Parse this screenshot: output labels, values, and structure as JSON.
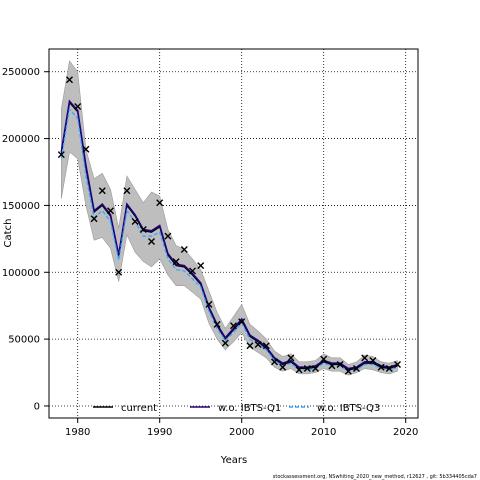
{
  "chart_data": {
    "type": "line",
    "xlabel": "Years",
    "ylabel": "Catch",
    "xlim": [
      1976.5,
      2021.5
    ],
    "ylim": [
      -9000,
      267000
    ],
    "xticks": [
      1980,
      1990,
      2000,
      2010,
      2020
    ],
    "xtick_labels": [
      "1980",
      "1990",
      "2000",
      "2010",
      "2020"
    ],
    "yticks": [
      0,
      50000,
      100000,
      150000,
      200000,
      250000
    ],
    "ytick_labels": [
      "0",
      "50000",
      "100000",
      "150000",
      "200000",
      "250000"
    ],
    "grid": true,
    "legend_position": "bottom",
    "footer": "stockassessment.org, NSwhiting_2020_new_method, r12627 , git: 5b334405cda7",
    "x": [
      1978,
      1979,
      1980,
      1981,
      1982,
      1983,
      1984,
      1985,
      1986,
      1987,
      1988,
      1989,
      1990,
      1991,
      1992,
      1993,
      1994,
      1995,
      1996,
      1997,
      1998,
      1999,
      2000,
      2001,
      2002,
      2003,
      2004,
      2005,
      2006,
      2007,
      2008,
      2009,
      2010,
      2011,
      2012,
      2013,
      2014,
      2015,
      2016,
      2017,
      2018,
      2019
    ],
    "observed": {
      "marker": "x",
      "values": [
        188000,
        244000,
        224000,
        192000,
        140000,
        161000,
        146000,
        100000,
        161000,
        138000,
        132000,
        123000,
        152000,
        127000,
        108000,
        117000,
        101000,
        105000,
        76000,
        61000,
        47000,
        60000,
        63000,
        45000,
        46000,
        45000,
        33000,
        29000,
        36000,
        27000,
        28000,
        28000,
        35000,
        30000,
        31000,
        26000,
        28000,
        36000,
        34000,
        29000,
        28000,
        31000
      ]
    },
    "band": {
      "color": "#bebebe",
      "lower": [
        155000,
        190000,
        185000,
        150000,
        124000,
        126000,
        118000,
        93000,
        128000,
        115000,
        108000,
        104000,
        110000,
        98000,
        90000,
        90000,
        85000,
        80000,
        62000,
        50000,
        42000,
        48000,
        55000,
        44000,
        40000,
        36000,
        29000,
        26000,
        28000,
        24000,
        24000,
        25000,
        28000,
        26000,
        26000,
        23000,
        25000,
        28000,
        27000,
        25000,
        24000,
        26000
      ],
      "upper": [
        222000,
        258000,
        250000,
        192000,
        170000,
        174000,
        162000,
        133000,
        172000,
        162000,
        152000,
        160000,
        157000,
        132000,
        120000,
        117000,
        110000,
        102000,
        86000,
        70000,
        58000,
        67000,
        76000,
        61000,
        56000,
        50000,
        41000,
        37000,
        39000,
        33000,
        33000,
        34000,
        39000,
        36000,
        36000,
        31000,
        33000,
        38000,
        37000,
        33000,
        32000,
        34000
      ]
    },
    "series": [
      {
        "name": "current",
        "color": "#000000",
        "values": [
          188000,
          227000,
          220000,
          178000,
          145000,
          150000,
          142000,
          112000,
          150000,
          142000,
          131000,
          130000,
          134000,
          113000,
          105000,
          104000,
          98000,
          91000,
          73000,
          60000,
          50000,
          57000,
          64000,
          52000,
          48000,
          43000,
          35000,
          31000,
          33000,
          28000,
          28000,
          29000,
          33000,
          31000,
          31000,
          27000,
          28000,
          32000,
          32000,
          29000,
          28000,
          30000
        ]
      },
      {
        "name": "w.o. IBTS-Q1",
        "color": "#22007a",
        "values": [
          190000,
          228000,
          221000,
          180000,
          146000,
          151000,
          143000,
          113000,
          151000,
          143000,
          132000,
          131000,
          135000,
          114000,
          106000,
          105000,
          99000,
          92000,
          74000,
          61000,
          51000,
          58000,
          65000,
          53000,
          49000,
          44000,
          36000,
          32000,
          34000,
          29000,
          29000,
          30000,
          34000,
          32000,
          32000,
          28000,
          29000,
          33000,
          33000,
          30000,
          29000,
          31000
        ]
      },
      {
        "name": "w.o. IBTS-Q3",
        "color": "#3aa7ff",
        "values": [
          185000,
          222000,
          215000,
          172000,
          141000,
          146000,
          138000,
          109000,
          146000,
          138000,
          127000,
          127000,
          130000,
          110000,
          102000,
          101000,
          95000,
          89000,
          71000,
          58000,
          49000,
          55000,
          62000,
          50000,
          46000,
          42000,
          34000,
          30000,
          32000,
          27000,
          27000,
          28000,
          32000,
          30000,
          30000,
          26000,
          27000,
          31000,
          31000,
          28000,
          27000,
          29000
        ]
      }
    ]
  }
}
